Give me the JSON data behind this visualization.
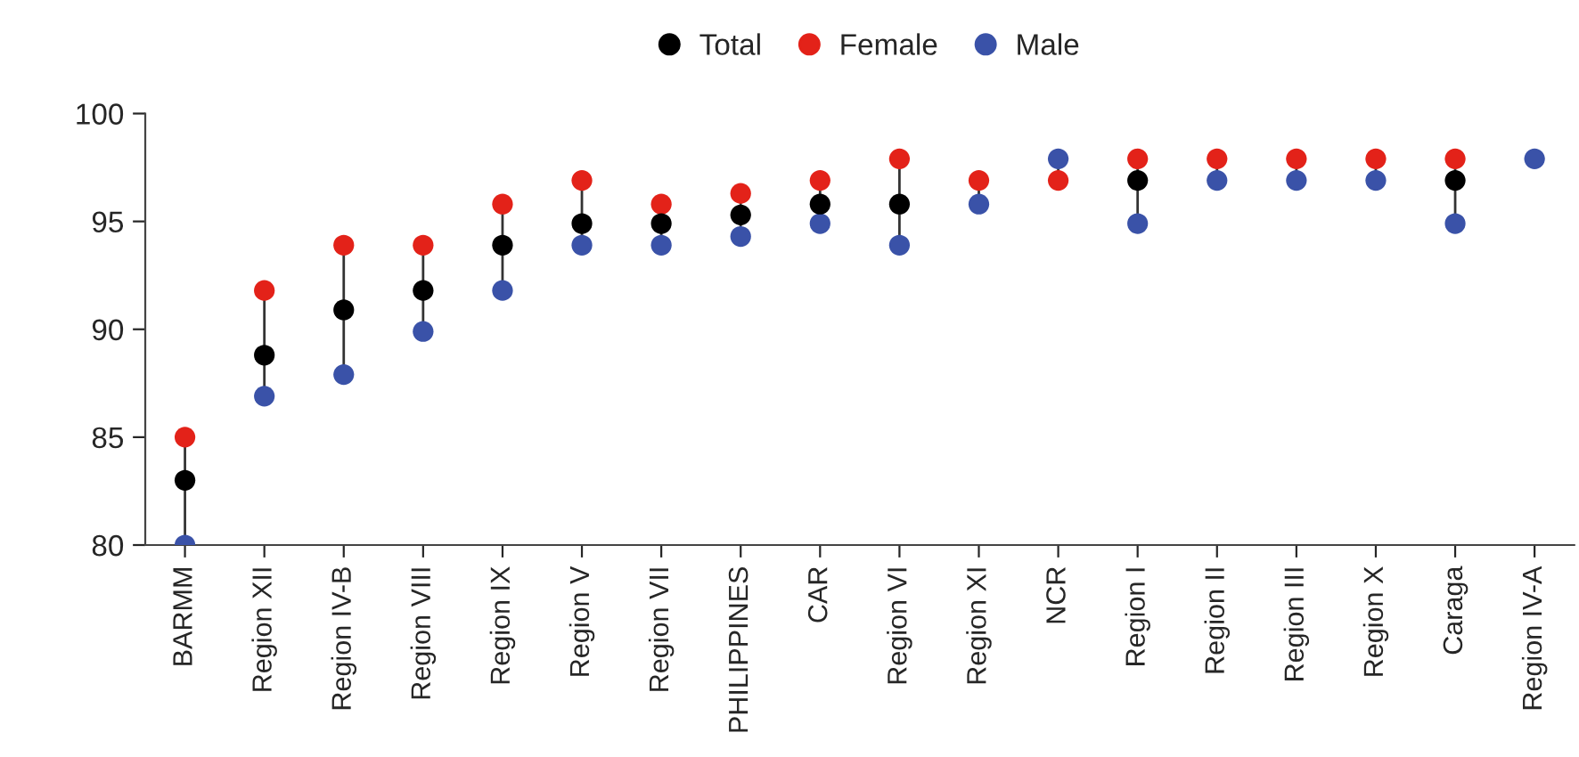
{
  "chart_data": {
    "type": "scatter",
    "categories": [
      "BARMM",
      "Region XII",
      "Region IV-B",
      "Region VIII",
      "Region IX",
      "Region V",
      "Region VII",
      "PHILIPPINES",
      "CAR",
      "Region VI",
      "Region XI",
      "NCR",
      "Region I",
      "Region II",
      "Region III",
      "Region X",
      "Caraga",
      "Region IV-A"
    ],
    "series": [
      {
        "name": "Total",
        "color": "#000000",
        "values": [
          83,
          88.8,
          90.9,
          91.8,
          93.9,
          94.9,
          94.9,
          95.3,
          95.8,
          95.8,
          null,
          null,
          96.9,
          null,
          null,
          null,
          96.9,
          null
        ]
      },
      {
        "name": "Female",
        "color": "#e32219",
        "values": [
          85,
          91.8,
          93.9,
          93.9,
          95.8,
          96.9,
          95.8,
          96.3,
          96.9,
          97.9,
          96.9,
          96.9,
          97.9,
          97.9,
          97.9,
          97.9,
          97.9,
          null
        ]
      },
      {
        "name": "Male",
        "color": "#3a52a8",
        "values": [
          80,
          86.9,
          87.9,
          89.9,
          91.8,
          93.9,
          93.9,
          94.3,
          94.9,
          93.9,
          95.8,
          97.9,
          94.9,
          96.9,
          96.9,
          96.9,
          94.9,
          97.9
        ]
      }
    ],
    "ylim": [
      80,
      100
    ],
    "yticks": [
      80,
      85,
      90,
      95,
      100
    ],
    "grid": false,
    "legend": "top",
    "marker": "circle"
  }
}
